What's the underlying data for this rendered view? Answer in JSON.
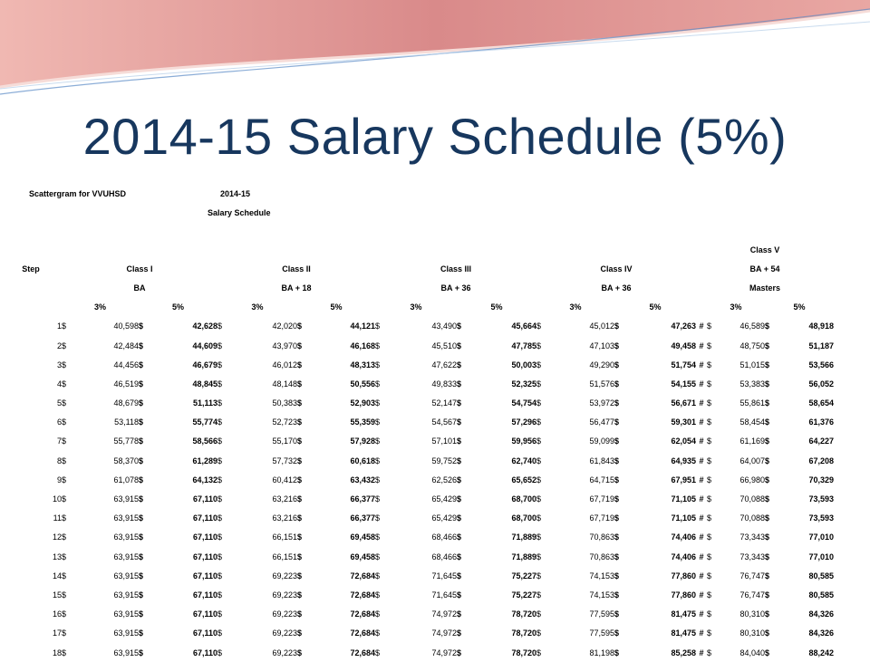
{
  "slide": {
    "title": "2014-15 Salary Schedule (5%)"
  },
  "sheet": {
    "label_left": "Scattergram for VVUHSD",
    "label_year": "2014-15",
    "label_schedule": "Salary Schedule",
    "step_header": "Step",
    "classes": [
      {
        "top": "",
        "name": "Class I",
        "degree": "BA"
      },
      {
        "top": "",
        "name": "Class II",
        "degree": "BA + 18"
      },
      {
        "top": "",
        "name": "Class III",
        "degree": "BA + 36"
      },
      {
        "top": "",
        "name": "Class IV",
        "degree": "BA + 36"
      },
      {
        "top": "Class V",
        "name": "BA + 54",
        "degree": "Masters"
      }
    ],
    "pct_a": "3%",
    "pct_b": "5%",
    "currency": "$",
    "hash": "#",
    "rows": [
      {
        "step": "1",
        "v": [
          "40,598",
          "42,628",
          "42,020",
          "44,121",
          "43,490",
          "45,664",
          "45,012",
          "47,263",
          "46,589",
          "48,918"
        ]
      },
      {
        "step": "2",
        "v": [
          "42,484",
          "44,609",
          "43,970",
          "46,168",
          "45,510",
          "47,785",
          "47,103",
          "49,458",
          "48,750",
          "51,187"
        ]
      },
      {
        "step": "3",
        "v": [
          "44,456",
          "46,679",
          "46,012",
          "48,313",
          "47,622",
          "50,003",
          "49,290",
          "51,754",
          "51,015",
          "53,566"
        ]
      },
      {
        "step": "4",
        "v": [
          "46,519",
          "48,845",
          "48,148",
          "50,556",
          "49,833",
          "52,325",
          "51,576",
          "54,155",
          "53,383",
          "56,052"
        ]
      },
      {
        "step": "5",
        "v": [
          "48,679",
          "51,113",
          "50,383",
          "52,903",
          "52,147",
          "54,754",
          "53,972",
          "56,671",
          "55,861",
          "58,654"
        ]
      },
      {
        "step": "6",
        "v": [
          "53,118",
          "55,774",
          "52,723",
          "55,359",
          "54,567",
          "57,296",
          "56,477",
          "59,301",
          "58,454",
          "61,376"
        ]
      },
      {
        "step": "7",
        "v": [
          "55,778",
          "58,566",
          "55,170",
          "57,928",
          "57,101",
          "59,956",
          "59,099",
          "62,054",
          "61,169",
          "64,227"
        ]
      },
      {
        "step": "8",
        "v": [
          "58,370",
          "61,289",
          "57,732",
          "60,618",
          "59,752",
          "62,740",
          "61,843",
          "64,935",
          "64,007",
          "67,208"
        ]
      },
      {
        "step": "9",
        "v": [
          "61,078",
          "64,132",
          "60,412",
          "63,432",
          "62,526",
          "65,652",
          "64,715",
          "67,951",
          "66,980",
          "70,329"
        ]
      },
      {
        "step": "10",
        "v": [
          "63,915",
          "67,110",
          "63,216",
          "66,377",
          "65,429",
          "68,700",
          "67,719",
          "71,105",
          "70,088",
          "73,593"
        ]
      },
      {
        "step": "11",
        "v": [
          "63,915",
          "67,110",
          "63,216",
          "66,377",
          "65,429",
          "68,700",
          "67,719",
          "71,105",
          "70,088",
          "73,593"
        ]
      },
      {
        "step": "12",
        "v": [
          "63,915",
          "67,110",
          "66,151",
          "69,458",
          "68,466",
          "71,889",
          "70,863",
          "74,406",
          "73,343",
          "77,010"
        ]
      },
      {
        "step": "13",
        "v": [
          "63,915",
          "67,110",
          "66,151",
          "69,458",
          "68,466",
          "71,889",
          "70,863",
          "74,406",
          "73,343",
          "77,010"
        ]
      },
      {
        "step": "14",
        "v": [
          "63,915",
          "67,110",
          "69,223",
          "72,684",
          "71,645",
          "75,227",
          "74,153",
          "77,860",
          "76,747",
          "80,585"
        ]
      },
      {
        "step": "15",
        "v": [
          "63,915",
          "67,110",
          "69,223",
          "72,684",
          "71,645",
          "75,227",
          "74,153",
          "77,860",
          "76,747",
          "80,585"
        ]
      },
      {
        "step": "16",
        "v": [
          "63,915",
          "67,110",
          "69,223",
          "72,684",
          "74,972",
          "78,720",
          "77,595",
          "81,475",
          "80,310",
          "84,326"
        ]
      },
      {
        "step": "17",
        "v": [
          "63,915",
          "67,110",
          "69,223",
          "72,684",
          "74,972",
          "78,720",
          "77,595",
          "81,475",
          "80,310",
          "84,326"
        ]
      },
      {
        "step": "18",
        "v": [
          "63,915",
          "67,110",
          "69,223",
          "72,684",
          "74,972",
          "78,720",
          "81,198",
          "85,258",
          "84,040",
          "88,242"
        ]
      }
    ]
  },
  "colors": {
    "title": "#17375e",
    "banner_dark": "#d98a8a",
    "banner_light": "#f2c4c0",
    "banner_line": "#5a8ac6"
  }
}
